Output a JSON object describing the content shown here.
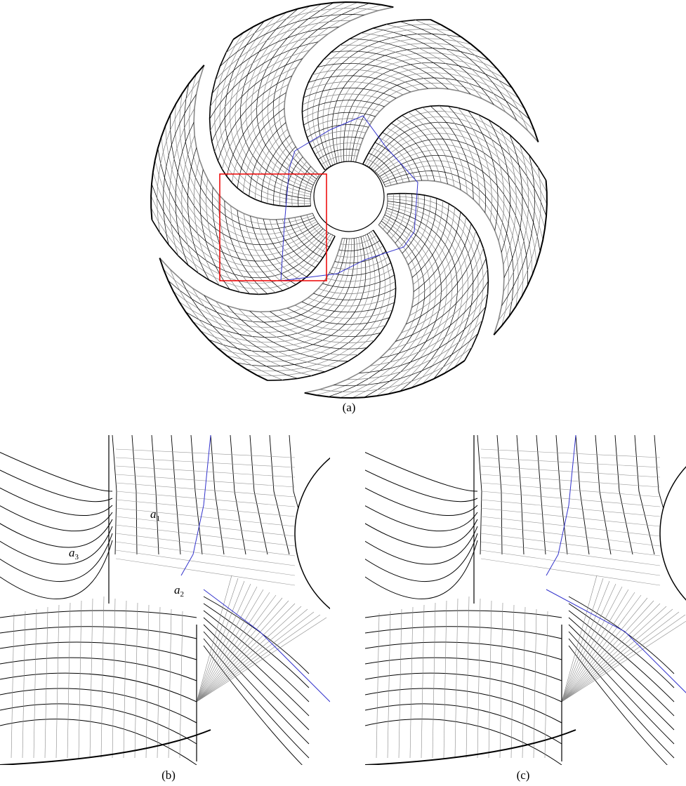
{
  "panels": [
    {
      "caption": "(a)"
    },
    {
      "caption": "(b)",
      "annotations": [
        {
          "symbol": "a",
          "subscript": "1"
        },
        {
          "symbol": "a",
          "subscript": "3"
        },
        {
          "symbol": "a",
          "subscript": "2"
        }
      ]
    },
    {
      "caption": "(c)"
    }
  ]
}
